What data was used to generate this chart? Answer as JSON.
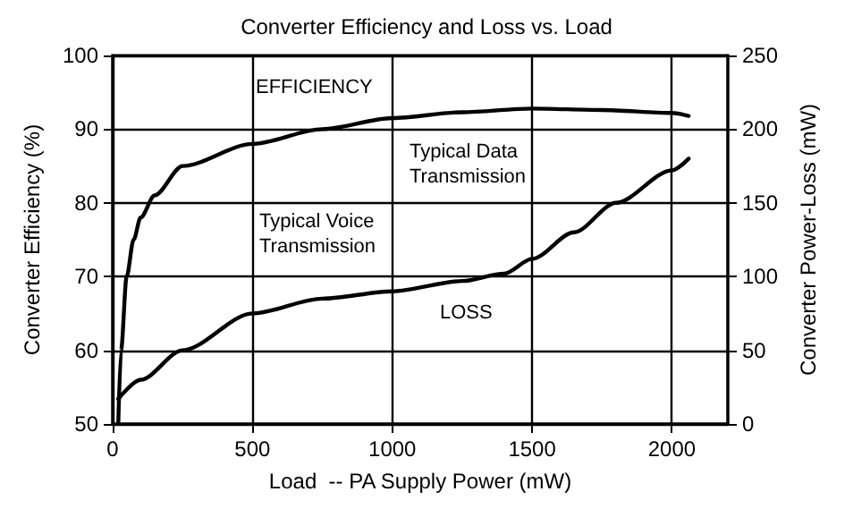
{
  "chart_data": {
    "type": "line",
    "title": "Converter Efficiency and Loss vs. Load",
    "xlabel": "Load  -- PA Supply Power (mW)",
    "ylabel": "Converter Efficiency (%)",
    "y2label": "Converter Power-Loss (mW)",
    "annotations": [
      "Typical Voice Transmission",
      "Typical Data Transmission"
    ],
    "series": [
      {
        "name": "EFFICIENCY",
        "color": "#000000",
        "x": [
          20,
          30,
          50,
          75,
          100,
          150,
          250,
          500,
          750,
          1000,
          1250,
          1500,
          1750,
          2000,
          2060
        ],
        "values": [
          50,
          60,
          70,
          75,
          78,
          81,
          85,
          88,
          90,
          91.5,
          92.3,
          92.8,
          92.6,
          92.2,
          91.8
        ]
      },
      {
        "name": "LOSS",
        "color": "#000000",
        "axis": "y2",
        "x": [
          20,
          100,
          250,
          500,
          750,
          1000,
          1250,
          1400,
          1500,
          1650,
          1800,
          2000,
          2060
        ],
        "values": [
          17,
          30,
          50,
          75,
          85,
          90,
          97,
          102,
          112,
          130,
          150,
          172,
          180
        ]
      }
    ],
    "xlim": [
      0,
      2200
    ],
    "xticks": [
      0,
      500,
      1000,
      1500,
      2000
    ],
    "ylim": [
      50,
      100
    ],
    "yticks": [
      50,
      60,
      70,
      80,
      90,
      100
    ],
    "y2lim": [
      0,
      250
    ],
    "y2ticks": [
      0,
      50,
      100,
      150,
      200,
      250
    ],
    "grid": true,
    "marker": "none",
    "line_style": "solid"
  }
}
